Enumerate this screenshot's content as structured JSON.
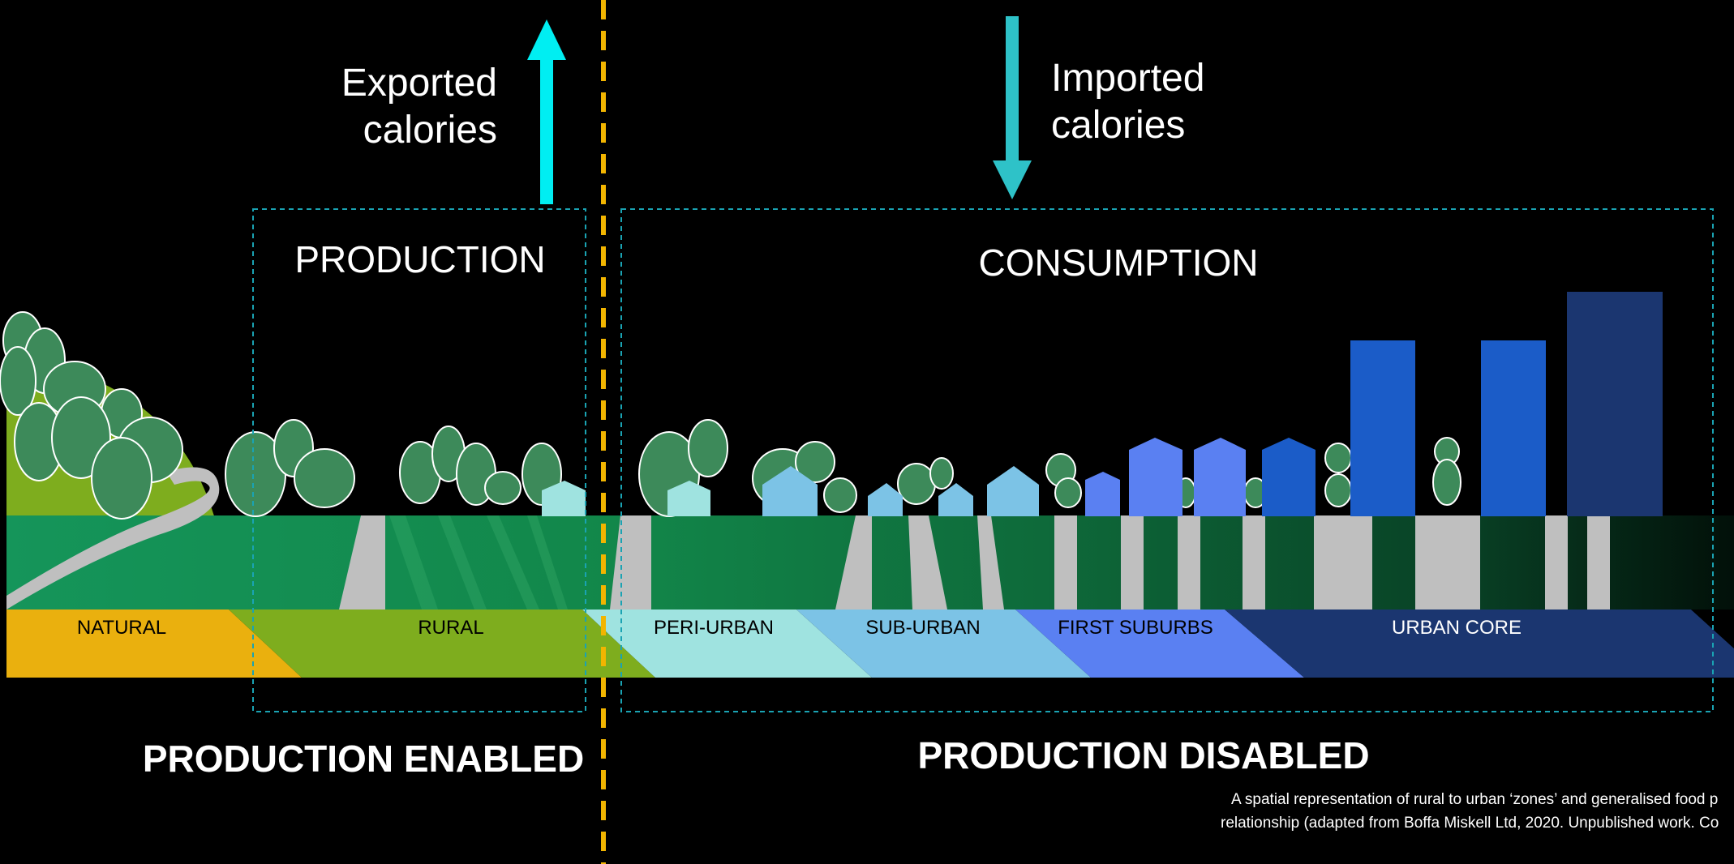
{
  "flows": {
    "exported_line1": "Exported",
    "exported_line2": "calories",
    "imported_line1": "Imported",
    "imported_line2": "calories"
  },
  "boxes": {
    "production": "PRODUCTION",
    "consumption": "CONSUMPTION"
  },
  "zones": [
    {
      "label": "NATURAL",
      "color": "#EAB00E"
    },
    {
      "label": "RURAL",
      "color": "#7EAD1E"
    },
    {
      "label": "PERI-URBAN",
      "color": "#9FE3E0"
    },
    {
      "label": "SUB-URBAN",
      "color": "#7CC3E6"
    },
    {
      "label": "FIRST SUBURBS",
      "color": "#5A80F2"
    },
    {
      "label": "URBAN CORE",
      "color": "#1B3670"
    }
  ],
  "verdicts": {
    "enabled": "PRODUCTION ENABLED",
    "disabled": "PRODUCTION DISABLED"
  },
  "caption": {
    "line1": "A spatial representation of rural to urban ‘zones’ and generalised food p",
    "line2": "relationship (adapted from Boffa Miskell Ltd, 2020. Unpublished work. Co"
  },
  "colors": {
    "background": "#000000",
    "divider": "#F2B500",
    "box_outline": "#1AA3B3",
    "export_arrow": "#00EEF2",
    "import_arrow": "#2EC2C8",
    "ground": "#12874A",
    "road": "#BFBFBF",
    "tree_fill": "#3D8A5A",
    "hill": "#7EAD1E"
  }
}
